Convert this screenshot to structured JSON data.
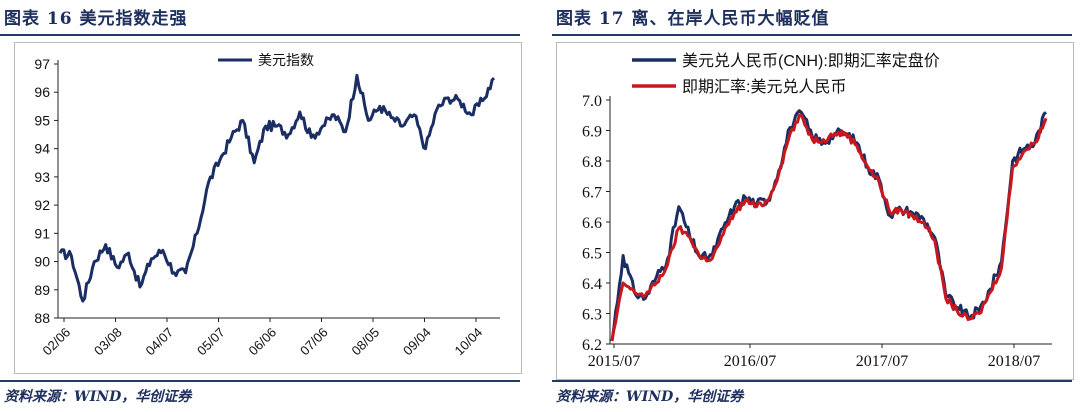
{
  "left": {
    "title": "图表 16   美元指数走强",
    "source": "资料来源：WIND，华创证券",
    "colors": {
      "line": "#1b2e63"
    },
    "chart_data": {
      "type": "line",
      "title": "",
      "xlabel": "",
      "ylabel": "",
      "ylim": [
        88,
        97
      ],
      "yticks": [
        88,
        89,
        90,
        91,
        92,
        93,
        94,
        95,
        96,
        97
      ],
      "xticks": [
        "02/06",
        "03/08",
        "04/07",
        "05/07",
        "06/06",
        "07/06",
        "08/05",
        "09/04",
        "10/04"
      ],
      "legend_position": "top-center",
      "grid": false,
      "series": [
        {
          "name": "美元指数",
          "x": [
            "02/06",
            "02/13",
            "02/20",
            "02/27",
            "03/06",
            "03/13",
            "03/20",
            "03/27",
            "04/03",
            "04/10",
            "04/17",
            "04/24",
            "05/01",
            "05/08",
            "05/15",
            "05/22",
            "05/29",
            "06/05",
            "06/12",
            "06/19",
            "06/26",
            "07/03",
            "07/10",
            "07/17",
            "07/24",
            "07/31",
            "08/07",
            "08/14",
            "08/21",
            "08/28",
            "09/04",
            "09/11",
            "09/18",
            "09/25",
            "10/02",
            "10/09",
            "10/16",
            "10/23",
            "10/30"
          ],
          "values": [
            90.3,
            90.2,
            88.6,
            90.0,
            90.6,
            89.8,
            90.3,
            89.1,
            90.1,
            90.4,
            89.6,
            89.6,
            91.0,
            92.8,
            93.6,
            94.4,
            95.0,
            93.5,
            94.8,
            94.8,
            94.5,
            95.3,
            94.4,
            94.8,
            95.2,
            94.6,
            96.6,
            95.0,
            95.5,
            95.1,
            94.8,
            95.2,
            94.0,
            95.4,
            95.8,
            95.7,
            95.2,
            95.7,
            96.5
          ]
        }
      ]
    }
  },
  "right": {
    "title": "图表 17   离、在岸人民币大幅贬值",
    "source": "资料来源：WIND，华创证券",
    "colors": {
      "cnh": "#1b2e63",
      "spot": "#c8181e"
    },
    "chart_data": {
      "type": "line",
      "title": "",
      "xlabel": "",
      "ylabel": "",
      "ylim": [
        6.2,
        7.0
      ],
      "yticks": [
        "6.2",
        "6.3",
        "6.4",
        "6.5",
        "6.6",
        "6.7",
        "6.8",
        "6.9",
        "7.0"
      ],
      "xticks": [
        "2015/07",
        "2016/07",
        "2017/07",
        "2018/07"
      ],
      "legend_position": "top-left",
      "grid": false,
      "series": [
        {
          "name": "美元兑人民币(CNH):即期汇率定盘价",
          "x": [
            "2015/07",
            "2015/08",
            "2015/09",
            "2015/10",
            "2015/11",
            "2015/12",
            "2016/01",
            "2016/02",
            "2016/03",
            "2016/04",
            "2016/05",
            "2016/06",
            "2016/07",
            "2016/08",
            "2016/09",
            "2016/10",
            "2016/11",
            "2016/12",
            "2017/01",
            "2017/02",
            "2017/03",
            "2017/04",
            "2017/05",
            "2017/06",
            "2017/07",
            "2017/08",
            "2017/09",
            "2017/10",
            "2017/11",
            "2017/12",
            "2018/01",
            "2018/02",
            "2018/03",
            "2018/04",
            "2018/05",
            "2018/06",
            "2018/07",
            "2018/08",
            "2018/09",
            "2018/10"
          ],
          "values": [
            6.21,
            6.49,
            6.37,
            6.35,
            6.42,
            6.48,
            6.65,
            6.55,
            6.48,
            6.49,
            6.58,
            6.65,
            6.68,
            6.66,
            6.67,
            6.77,
            6.91,
            6.96,
            6.88,
            6.86,
            6.89,
            6.89,
            6.86,
            6.78,
            6.74,
            6.62,
            6.64,
            6.63,
            6.61,
            6.55,
            6.36,
            6.32,
            6.29,
            6.31,
            6.38,
            6.47,
            6.8,
            6.84,
            6.86,
            6.96
          ]
        },
        {
          "name": "即期汇率:美元兑人民币",
          "x": [
            "2015/07",
            "2015/08",
            "2015/09",
            "2015/10",
            "2015/11",
            "2015/12",
            "2016/01",
            "2016/02",
            "2016/03",
            "2016/04",
            "2016/05",
            "2016/06",
            "2016/07",
            "2016/08",
            "2016/09",
            "2016/10",
            "2016/11",
            "2016/12",
            "2017/01",
            "2017/02",
            "2017/03",
            "2017/04",
            "2017/05",
            "2017/06",
            "2017/07",
            "2017/08",
            "2017/09",
            "2017/10",
            "2017/11",
            "2017/12",
            "2018/01",
            "2018/02",
            "2018/03",
            "2018/04",
            "2018/05",
            "2018/06",
            "2018/07",
            "2018/08",
            "2018/09",
            "2018/10"
          ],
          "values": [
            6.21,
            6.4,
            6.37,
            6.36,
            6.4,
            6.46,
            6.58,
            6.55,
            6.48,
            6.48,
            6.56,
            6.63,
            6.67,
            6.65,
            6.67,
            6.76,
            6.89,
            6.95,
            6.87,
            6.87,
            6.89,
            6.89,
            6.85,
            6.78,
            6.73,
            6.63,
            6.64,
            6.62,
            6.6,
            6.54,
            6.35,
            6.31,
            6.28,
            6.3,
            6.37,
            6.45,
            6.78,
            6.83,
            6.86,
            6.94
          ]
        }
      ]
    }
  }
}
